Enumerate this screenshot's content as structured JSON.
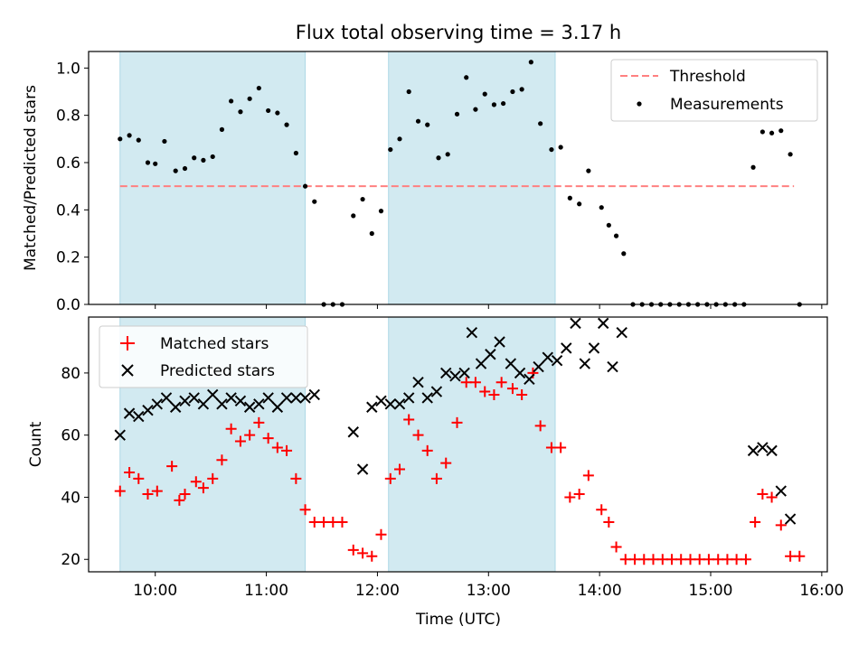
{
  "title": "Flux total observing time = 3.17 h",
  "colors": {
    "threshold": "#ff8080",
    "measurement": "#000000",
    "matched": "#ff0000",
    "predicted": "#000000",
    "span": "#add8e6"
  },
  "chart_data": [
    {
      "type": "scatter",
      "ylabel": "Matched/Predicted stars",
      "xlim": [
        9.4,
        16.05
      ],
      "ylim": [
        0,
        1.07
      ],
      "yticks": [
        0.0,
        0.2,
        0.4,
        0.6,
        0.8,
        1.0
      ],
      "ytick_labels": [
        "0.0",
        "0.2",
        "0.4",
        "0.6",
        "0.8",
        "1.0"
      ],
      "shaded_spans": [
        [
          9.683,
          11.35
        ],
        [
          12.1,
          13.6
        ]
      ],
      "threshold": {
        "name": "Threshold",
        "y": 0.5,
        "x": [
          9.683,
          15.75
        ]
      },
      "legend_position": "upper right",
      "series": [
        {
          "name": "Measurements",
          "points": [
            [
              9.683,
              0.7
            ],
            [
              9.767,
              0.715
            ],
            [
              9.85,
              0.695
            ],
            [
              9.933,
              0.6
            ],
            [
              10.0,
              0.595
            ],
            [
              10.083,
              0.69
            ],
            [
              10.183,
              0.565
            ],
            [
              10.267,
              0.575
            ],
            [
              10.35,
              0.62
            ],
            [
              10.433,
              0.61
            ],
            [
              10.517,
              0.625
            ],
            [
              10.6,
              0.74
            ],
            [
              10.683,
              0.86
            ],
            [
              10.767,
              0.815
            ],
            [
              10.85,
              0.87
            ],
            [
              10.933,
              0.915
            ],
            [
              11.017,
              0.82
            ],
            [
              11.1,
              0.81
            ],
            [
              11.183,
              0.76
            ],
            [
              11.267,
              0.64
            ],
            [
              11.35,
              0.5
            ],
            [
              11.433,
              0.435
            ],
            [
              11.517,
              0.0
            ],
            [
              11.6,
              0.0
            ],
            [
              11.683,
              0.0
            ],
            [
              11.783,
              0.375
            ],
            [
              11.867,
              0.445
            ],
            [
              11.95,
              0.3
            ],
            [
              12.033,
              0.395
            ],
            [
              12.117,
              0.655
            ],
            [
              12.2,
              0.7
            ],
            [
              12.283,
              0.9
            ],
            [
              12.367,
              0.775
            ],
            [
              12.45,
              0.76
            ],
            [
              12.55,
              0.62
            ],
            [
              12.633,
              0.635
            ],
            [
              12.717,
              0.805
            ],
            [
              12.8,
              0.96
            ],
            [
              12.883,
              0.825
            ],
            [
              12.967,
              0.89
            ],
            [
              13.05,
              0.845
            ],
            [
              13.133,
              0.85
            ],
            [
              13.217,
              0.9
            ],
            [
              13.3,
              0.91
            ],
            [
              13.383,
              1.025
            ],
            [
              13.467,
              0.765
            ],
            [
              13.567,
              0.655
            ],
            [
              13.65,
              0.665
            ],
            [
              13.733,
              0.45
            ],
            [
              13.817,
              0.425
            ],
            [
              13.9,
              0.565
            ],
            [
              14.017,
              0.41
            ],
            [
              14.083,
              0.335
            ],
            [
              14.15,
              0.29
            ],
            [
              14.217,
              0.215
            ],
            [
              14.3,
              0.0
            ],
            [
              14.383,
              0.0
            ],
            [
              14.467,
              0.0
            ],
            [
              14.55,
              0.0
            ],
            [
              14.633,
              0.0
            ],
            [
              14.717,
              0.0
            ],
            [
              14.8,
              0.0
            ],
            [
              14.883,
              0.0
            ],
            [
              14.967,
              0.0
            ],
            [
              15.05,
              0.0
            ],
            [
              15.133,
              0.0
            ],
            [
              15.217,
              0.0
            ],
            [
              15.3,
              0.0
            ],
            [
              15.383,
              0.58
            ],
            [
              15.467,
              0.73
            ],
            [
              15.55,
              0.725
            ],
            [
              15.633,
              0.735
            ],
            [
              15.717,
              0.635
            ],
            [
              15.8,
              0.0
            ]
          ]
        }
      ]
    },
    {
      "type": "scatter",
      "xlabel": "Time (UTC)",
      "ylabel": "Count",
      "xlim": [
        9.4,
        16.05
      ],
      "ylim": [
        16,
        98
      ],
      "yticks": [
        20,
        40,
        60,
        80
      ],
      "ytick_labels": [
        "20",
        "40",
        "60",
        "80"
      ],
      "xticks": [
        10,
        11,
        12,
        13,
        14,
        15,
        16
      ],
      "xtick_labels": [
        "10:00",
        "11:00",
        "12:00",
        "13:00",
        "14:00",
        "15:00",
        "16:00"
      ],
      "shaded_spans": [
        [
          9.683,
          11.35
        ],
        [
          12.1,
          13.6
        ]
      ],
      "legend_position": "upper left",
      "series": [
        {
          "name": "Matched stars",
          "marker": "+",
          "points": [
            [
              9.683,
              42
            ],
            [
              9.767,
              48
            ],
            [
              9.85,
              46
            ],
            [
              9.933,
              41
            ],
            [
              10.017,
              42
            ],
            [
              10.15,
              50
            ],
            [
              10.217,
              39
            ],
            [
              10.267,
              41
            ],
            [
              10.367,
              45
            ],
            [
              10.433,
              43
            ],
            [
              10.517,
              46
            ],
            [
              10.6,
              52
            ],
            [
              10.683,
              62
            ],
            [
              10.767,
              58
            ],
            [
              10.85,
              60
            ],
            [
              10.933,
              64
            ],
            [
              11.017,
              59
            ],
            [
              11.1,
              56
            ],
            [
              11.183,
              55
            ],
            [
              11.267,
              46
            ],
            [
              11.35,
              36
            ],
            [
              11.433,
              32
            ],
            [
              11.517,
              32
            ],
            [
              11.6,
              32
            ],
            [
              11.683,
              32
            ],
            [
              11.783,
              23
            ],
            [
              11.867,
              22
            ],
            [
              11.95,
              21
            ],
            [
              12.033,
              28
            ],
            [
              12.117,
              46
            ],
            [
              12.2,
              49
            ],
            [
              12.283,
              65
            ],
            [
              12.367,
              60
            ],
            [
              12.45,
              55
            ],
            [
              12.533,
              46
            ],
            [
              12.617,
              51
            ],
            [
              12.717,
              64
            ],
            [
              12.8,
              77
            ],
            [
              12.883,
              77
            ],
            [
              12.967,
              74
            ],
            [
              13.05,
              73
            ],
            [
              13.117,
              77
            ],
            [
              13.217,
              75
            ],
            [
              13.3,
              73
            ],
            [
              13.4,
              80
            ],
            [
              13.467,
              63
            ],
            [
              13.567,
              56
            ],
            [
              13.65,
              56
            ],
            [
              13.733,
              40
            ],
            [
              13.817,
              41
            ],
            [
              13.9,
              47
            ],
            [
              14.017,
              36
            ],
            [
              14.083,
              32
            ],
            [
              14.15,
              24
            ],
            [
              14.233,
              20
            ],
            [
              14.317,
              20
            ],
            [
              14.4,
              20
            ],
            [
              14.483,
              20
            ],
            [
              14.567,
              20
            ],
            [
              14.65,
              20
            ],
            [
              14.733,
              20
            ],
            [
              14.817,
              20
            ],
            [
              14.9,
              20
            ],
            [
              14.983,
              20
            ],
            [
              15.067,
              20
            ],
            [
              15.15,
              20
            ],
            [
              15.233,
              20
            ],
            [
              15.317,
              20
            ],
            [
              15.4,
              32
            ],
            [
              15.467,
              41
            ],
            [
              15.55,
              40
            ],
            [
              15.633,
              31
            ],
            [
              15.717,
              21
            ],
            [
              15.8,
              21
            ]
          ]
        },
        {
          "name": "Predicted stars",
          "marker": "x",
          "points": [
            [
              9.683,
              60
            ],
            [
              9.767,
              67
            ],
            [
              9.85,
              66
            ],
            [
              9.933,
              68
            ],
            [
              10.017,
              70
            ],
            [
              10.1,
              72
            ],
            [
              10.183,
              69
            ],
            [
              10.267,
              71
            ],
            [
              10.35,
              72
            ],
            [
              10.433,
              70
            ],
            [
              10.517,
              73
            ],
            [
              10.6,
              70
            ],
            [
              10.683,
              72
            ],
            [
              10.767,
              71
            ],
            [
              10.85,
              69
            ],
            [
              10.933,
              70
            ],
            [
              11.017,
              72
            ],
            [
              11.1,
              69
            ],
            [
              11.183,
              72
            ],
            [
              11.267,
              72
            ],
            [
              11.35,
              72
            ],
            [
              11.433,
              73
            ],
            [
              11.783,
              61
            ],
            [
              11.867,
              49
            ],
            [
              11.95,
              69
            ],
            [
              12.033,
              71
            ],
            [
              12.117,
              70
            ],
            [
              12.2,
              70
            ],
            [
              12.283,
              72
            ],
            [
              12.367,
              77
            ],
            [
              12.45,
              72
            ],
            [
              12.533,
              74
            ],
            [
              12.617,
              80
            ],
            [
              12.7,
              79
            ],
            [
              12.783,
              80
            ],
            [
              12.85,
              93
            ],
            [
              12.933,
              83
            ],
            [
              13.017,
              86
            ],
            [
              13.1,
              90
            ],
            [
              13.2,
              83
            ],
            [
              13.283,
              80
            ],
            [
              13.367,
              78
            ],
            [
              13.45,
              82
            ],
            [
              13.533,
              85
            ],
            [
              13.617,
              84
            ],
            [
              13.7,
              88
            ],
            [
              13.783,
              96
            ],
            [
              13.867,
              83
            ],
            [
              13.95,
              88
            ],
            [
              14.033,
              96
            ],
            [
              14.117,
              82
            ],
            [
              14.2,
              93
            ],
            [
              15.383,
              55
            ],
            [
              15.467,
              56
            ],
            [
              15.55,
              55
            ],
            [
              15.633,
              42
            ],
            [
              15.717,
              33
            ]
          ]
        }
      ]
    }
  ]
}
